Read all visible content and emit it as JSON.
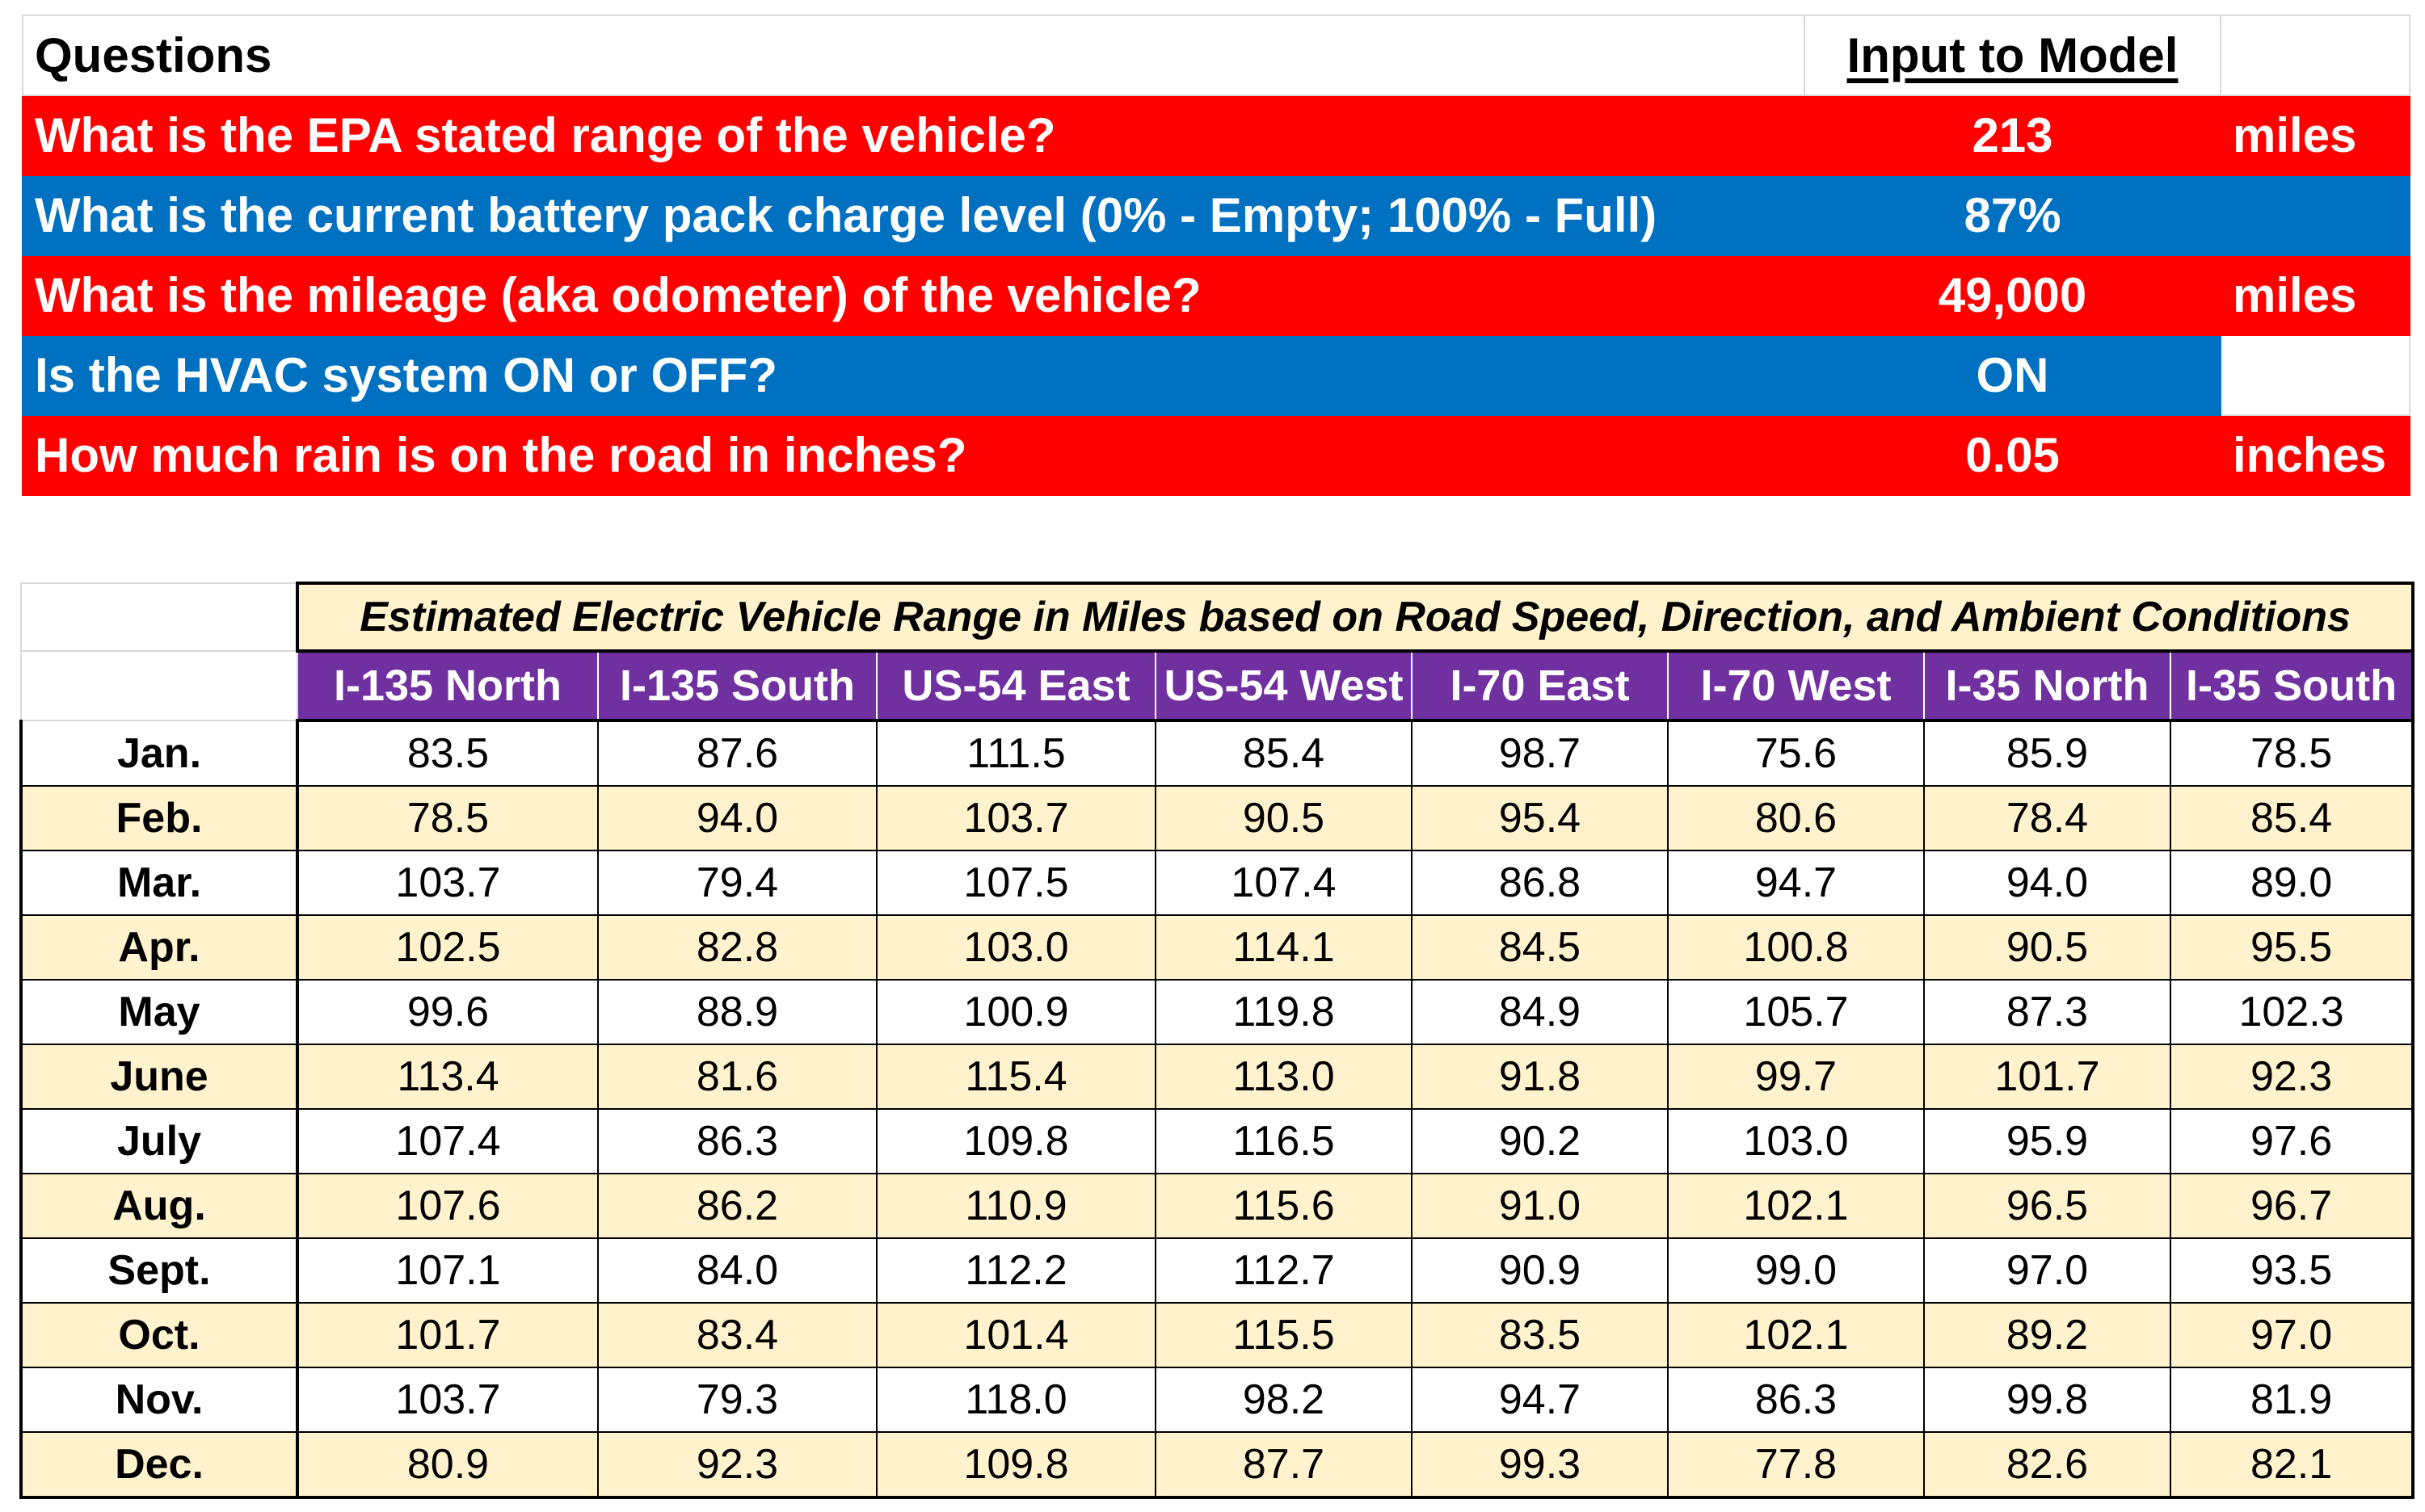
{
  "questions": {
    "header_label": "Questions",
    "header_value": "Input to Model",
    "rows": [
      {
        "question": "What is the EPA stated range of the vehicle?",
        "value": "213",
        "unit": "miles",
        "color": "red"
      },
      {
        "question": "What is the current battery pack charge level (0% - Empty; 100% - Full)",
        "value": "87%",
        "unit": "",
        "color": "blue"
      },
      {
        "question": "What is the mileage (aka odometer) of the vehicle?",
        "value": "49,000",
        "unit": "miles",
        "color": "red"
      },
      {
        "question": "Is the HVAC system ON or OFF?",
        "value": "ON",
        "unit": "",
        "color": "blue"
      },
      {
        "question": "How much rain is on the road in inches?",
        "value": "0.05",
        "unit": "inches",
        "color": "red"
      }
    ]
  },
  "range_table": {
    "title": "Estimated Electric Vehicle Range in Miles based on Road Speed, Direction, and Ambient Conditions",
    "columns": [
      "I-135 North",
      "I-135 South",
      "US-54 East",
      "US-54 West",
      "I-70 East",
      "I-70 West",
      "I-35 North",
      "I-35 South"
    ],
    "rows": [
      {
        "month": "Jan.",
        "values": [
          "83.5",
          "87.6",
          "111.5",
          "85.4",
          "98.7",
          "75.6",
          "85.9",
          "78.5"
        ]
      },
      {
        "month": "Feb.",
        "values": [
          "78.5",
          "94.0",
          "103.7",
          "90.5",
          "95.4",
          "80.6",
          "78.4",
          "85.4"
        ]
      },
      {
        "month": "Mar.",
        "values": [
          "103.7",
          "79.4",
          "107.5",
          "107.4",
          "86.8",
          "94.7",
          "94.0",
          "89.0"
        ]
      },
      {
        "month": "Apr.",
        "values": [
          "102.5",
          "82.8",
          "103.0",
          "114.1",
          "84.5",
          "100.8",
          "90.5",
          "95.5"
        ]
      },
      {
        "month": "May",
        "values": [
          "99.6",
          "88.9",
          "100.9",
          "119.8",
          "84.9",
          "105.7",
          "87.3",
          "102.3"
        ]
      },
      {
        "month": "June",
        "values": [
          "113.4",
          "81.6",
          "115.4",
          "113.0",
          "91.8",
          "99.7",
          "101.7",
          "92.3"
        ]
      },
      {
        "month": "July",
        "values": [
          "107.4",
          "86.3",
          "109.8",
          "116.5",
          "90.2",
          "103.0",
          "95.9",
          "97.6"
        ]
      },
      {
        "month": "Aug.",
        "values": [
          "107.6",
          "86.2",
          "110.9",
          "115.6",
          "91.0",
          "102.1",
          "96.5",
          "96.7"
        ]
      },
      {
        "month": "Sept.",
        "values": [
          "107.1",
          "84.0",
          "112.2",
          "112.7",
          "90.9",
          "99.0",
          "97.0",
          "93.5"
        ]
      },
      {
        "month": "Oct.",
        "values": [
          "101.7",
          "83.4",
          "101.4",
          "115.5",
          "83.5",
          "102.1",
          "89.2",
          "97.0"
        ]
      },
      {
        "month": "Nov.",
        "values": [
          "103.7",
          "79.3",
          "118.0",
          "98.2",
          "94.7",
          "86.3",
          "99.8",
          "81.9"
        ]
      },
      {
        "month": "Dec.",
        "values": [
          "80.9",
          "92.3",
          "109.8",
          "87.7",
          "99.3",
          "77.8",
          "82.6",
          "82.1"
        ]
      }
    ]
  }
}
